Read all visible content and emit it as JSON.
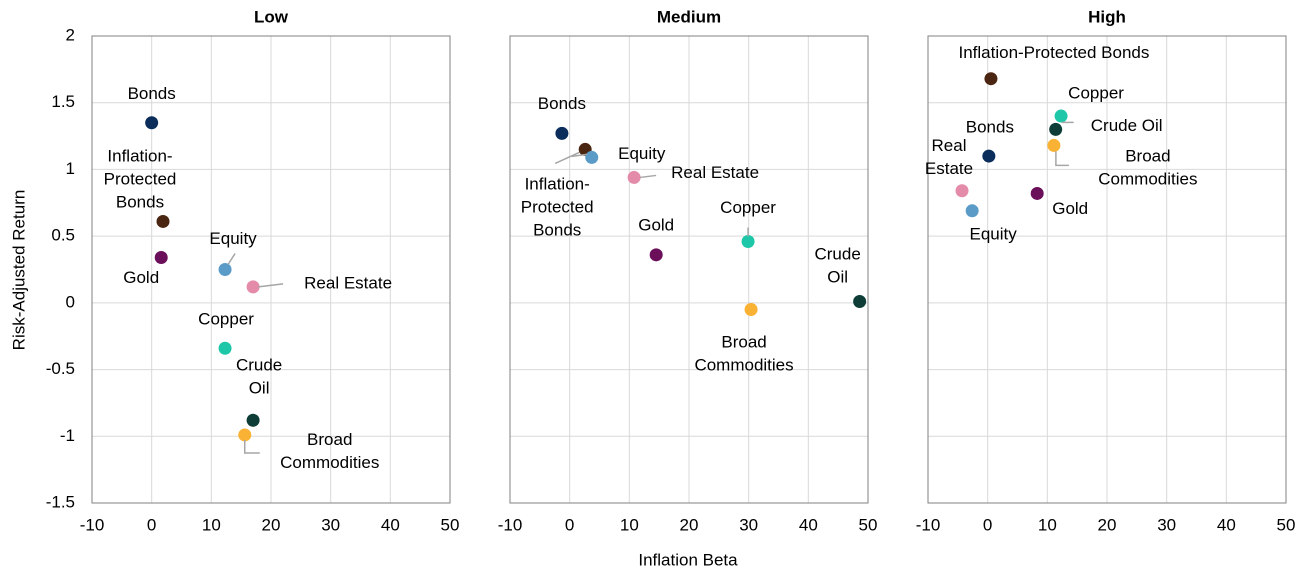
{
  "chart_data": [
    {
      "type": "scatter",
      "title": "Low",
      "ylabel": "Risk-Adjusted Return",
      "xlim": [
        -10,
        50
      ],
      "xticks": [
        -10,
        0,
        10,
        20,
        30,
        40,
        50
      ],
      "ylim": [
        -1.5,
        2
      ],
      "yticks": [
        -1.5,
        -1,
        -0.5,
        0,
        0.5,
        1,
        1.5,
        2
      ],
      "grid": true,
      "series": [
        {
          "name": "Bonds",
          "color": "#0b2d5b",
          "x": [
            0
          ],
          "values": [
            1.35
          ]
        },
        {
          "name": "Inflation-Protected Bonds",
          "color": "#4a2511",
          "x": [
            1.9
          ],
          "values": [
            0.61
          ]
        },
        {
          "name": "Gold",
          "color": "#6b0f5a",
          "x": [
            1.6
          ],
          "values": [
            0.34
          ]
        },
        {
          "name": "Equity",
          "color": "#5b9bc8",
          "x": [
            12.3
          ],
          "values": [
            0.25
          ]
        },
        {
          "name": "Real Estate",
          "color": "#e38ba8",
          "x": [
            17
          ],
          "values": [
            0.12
          ]
        },
        {
          "name": "Copper",
          "color": "#1ec7a8",
          "x": [
            12.3
          ],
          "values": [
            -0.34
          ]
        },
        {
          "name": "Crude Oil",
          "color": "#0d3d36",
          "x": [
            17
          ],
          "values": [
            -0.88
          ]
        },
        {
          "name": "Broad Commodities",
          "color": "#f9b233",
          "x": [
            15.6
          ],
          "values": [
            -0.99
          ]
        }
      ]
    },
    {
      "type": "scatter",
      "title": "Medium",
      "xlabel": "Inflation Beta",
      "xlim": [
        -10,
        50
      ],
      "xticks": [
        -10,
        0,
        10,
        20,
        30,
        40,
        50
      ],
      "ylim": [
        -1.5,
        2
      ],
      "yticks": [
        -1.5,
        -1,
        -0.5,
        0,
        0.5,
        1,
        1.5,
        2
      ],
      "grid": true,
      "series": [
        {
          "name": "Bonds",
          "color": "#0b2d5b",
          "x": [
            -1.3
          ],
          "values": [
            1.27
          ]
        },
        {
          "name": "Inflation-Protected Bonds",
          "color": "#4a2511",
          "x": [
            2.6
          ],
          "values": [
            1.15
          ]
        },
        {
          "name": "Equity",
          "color": "#5b9bc8",
          "x": [
            3.7
          ],
          "values": [
            1.09
          ]
        },
        {
          "name": "Real Estate",
          "color": "#e38ba8",
          "x": [
            10.8
          ],
          "values": [
            0.94
          ]
        },
        {
          "name": "Gold",
          "color": "#6b0f5a",
          "x": [
            14.5
          ],
          "values": [
            0.36
          ]
        },
        {
          "name": "Copper",
          "color": "#1ec7a8",
          "x": [
            29.9
          ],
          "values": [
            0.46
          ]
        },
        {
          "name": "Crude Oil",
          "color": "#0d3d36",
          "x": [
            48.6
          ],
          "values": [
            0.01
          ]
        },
        {
          "name": "Broad Commodities",
          "color": "#f9b233",
          "x": [
            30.4
          ],
          "values": [
            -0.05
          ]
        }
      ]
    },
    {
      "type": "scatter",
      "title": "High",
      "xlim": [
        -10,
        50
      ],
      "xticks": [
        -10,
        0,
        10,
        20,
        30,
        40,
        50
      ],
      "ylim": [
        -1.5,
        2
      ],
      "yticks": [
        -1.5,
        -1,
        -0.5,
        0,
        0.5,
        1,
        1.5,
        2
      ],
      "grid": true,
      "series": [
        {
          "name": "Inflation-Protected Bonds",
          "color": "#4a2511",
          "x": [
            0.55
          ],
          "values": [
            1.68
          ]
        },
        {
          "name": "Copper",
          "color": "#1ec7a8",
          "x": [
            12.3
          ],
          "values": [
            1.4
          ]
        },
        {
          "name": "Crude Oil",
          "color": "#0d3d36",
          "x": [
            11.4
          ],
          "values": [
            1.3
          ]
        },
        {
          "name": "Broad Commodities",
          "color": "#f9b233",
          "x": [
            11.1
          ],
          "values": [
            1.18
          ]
        },
        {
          "name": "Bonds",
          "color": "#0b2d5b",
          "x": [
            0.2
          ],
          "values": [
            1.1
          ]
        },
        {
          "name": "Real Estate",
          "color": "#e38ba8",
          "x": [
            -4.3
          ],
          "values": [
            0.84
          ]
        },
        {
          "name": "Equity",
          "color": "#5b9bc8",
          "x": [
            -2.6
          ],
          "values": [
            0.69
          ]
        },
        {
          "name": "Gold",
          "color": "#6b0f5a",
          "x": [
            8.3
          ],
          "values": [
            0.82
          ]
        }
      ]
    }
  ]
}
